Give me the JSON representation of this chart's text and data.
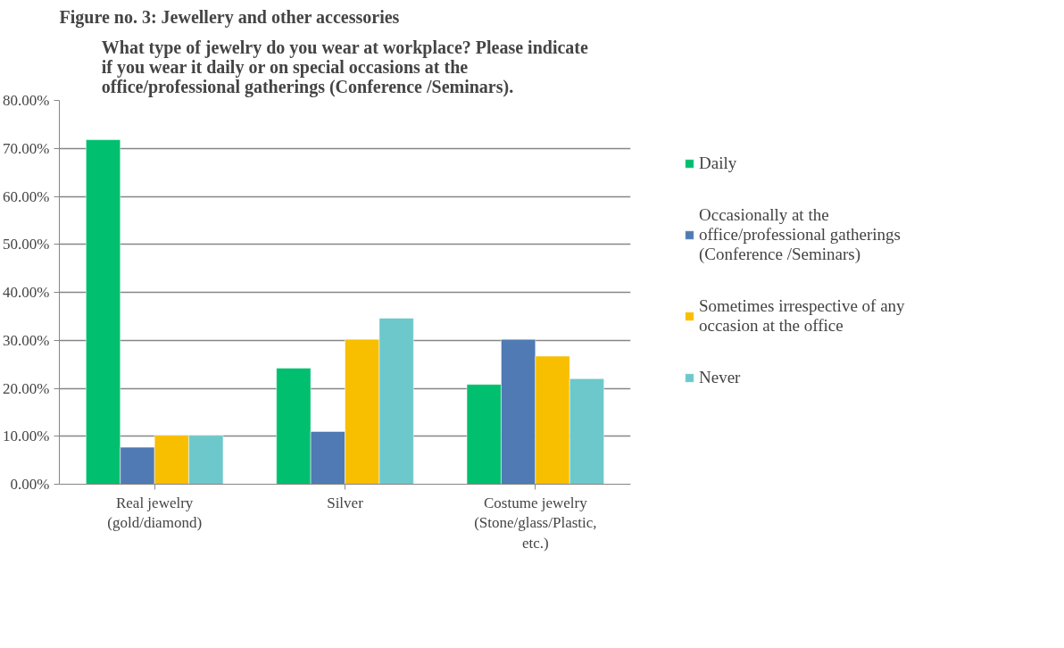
{
  "chart_data": {
    "type": "bar",
    "title": "What type of jewelry do you wear at workplace? Please indicate if you wear it daily or on special occasions at the office/professional gatherings (Conference /Seminars).",
    "annotations": [
      "Figure no. 3: Jewellery and other accessories"
    ],
    "categories": [
      "Real jewelry (gold/diamond)",
      "Silver",
      "Costume jewelry (Stone/glass/Plastic, etc.)"
    ],
    "series": [
      {
        "name": "Daily",
        "color": "#00bf6f",
        "values": [
          71.8,
          24.2,
          20.8
        ]
      },
      {
        "name": "Occasionally at the office/professional gatherings (Conference /Seminars)",
        "color": "#4f7ab3",
        "values": [
          7.7,
          11.0,
          30.2
        ]
      },
      {
        "name": "Sometimes irrespective of any occasion at the office",
        "color": "#f8be00",
        "values": [
          10.2,
          30.2,
          26.7
        ]
      },
      {
        "name": "Never",
        "color": "#6cc8cb",
        "values": [
          10.2,
          34.6,
          22.0
        ]
      }
    ],
    "ylim": [
      0,
      80
    ],
    "yticks": [
      {
        "value": 0,
        "label": "0.00%"
      },
      {
        "value": 10,
        "label": "10.00%"
      },
      {
        "value": 20,
        "label": "20.00%"
      },
      {
        "value": 30,
        "label": "30.00%"
      },
      {
        "value": 40,
        "label": "40.00%"
      },
      {
        "value": 50,
        "label": "50.00%"
      },
      {
        "value": 60,
        "label": "60.00%"
      },
      {
        "value": 70,
        "label": "70.00%"
      },
      {
        "value": 80,
        "label": "80.00%"
      }
    ],
    "grid": "y",
    "legend": "right"
  }
}
